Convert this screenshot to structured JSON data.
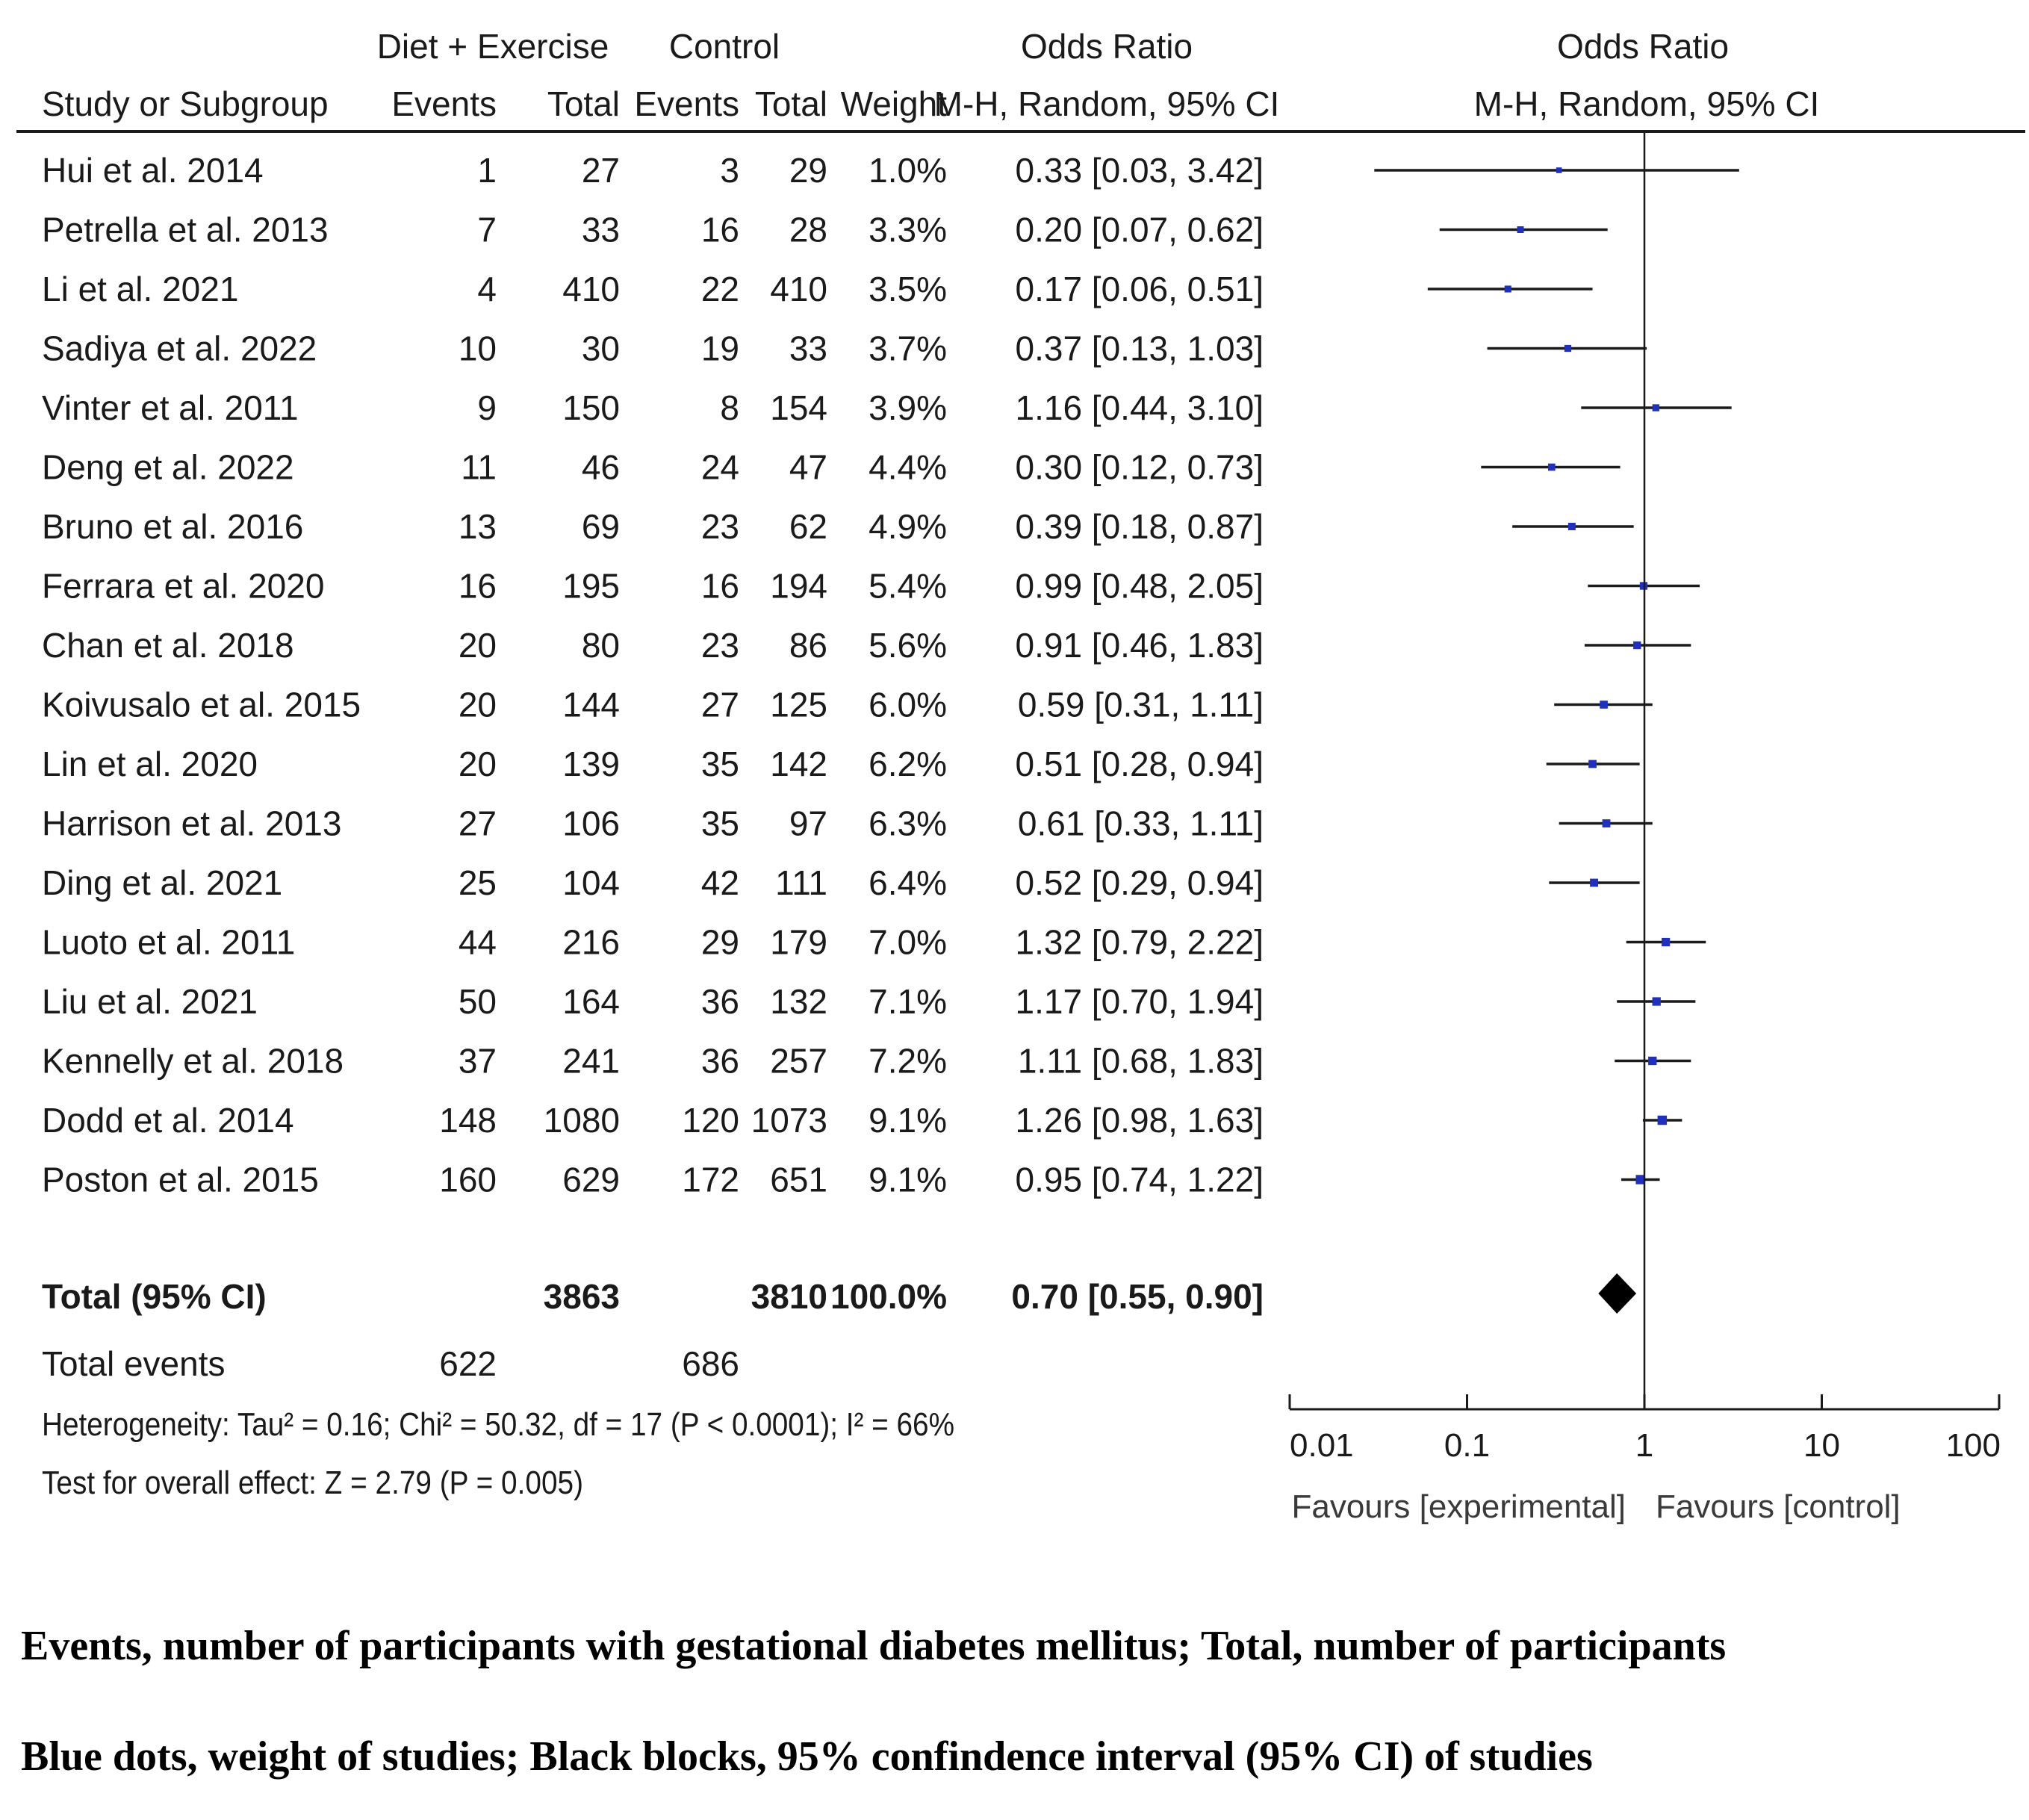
{
  "headers": {
    "group1": "Diet + Exercise",
    "group2": "Control",
    "or_label": "Odds Ratio",
    "or_method": "M-H, Random, 95% CI",
    "plot_label": "Odds Ratio",
    "plot_method": "M-H, Random, 95% CI",
    "study": "Study or Subgroup",
    "events": "Events",
    "total": "Total",
    "weight": "Weight"
  },
  "total_row": {
    "label": "Total (95% CI)",
    "total1": "3863",
    "total2": "3810",
    "weight": "100.0%",
    "ci": "0.70 [0.55, 0.90]"
  },
  "events_row": {
    "label": "Total events",
    "events1": "622",
    "events2": "686"
  },
  "heterogeneity": "Heterogeneity: Tau² = 0.16; Chi² = 50.32, df = 17 (P < 0.0001); I² = 66%",
  "overall_effect": "Test for overall effect: Z = 2.79 (P = 0.005)",
  "captions": {
    "line1": "Events, number of participants with gestational diabetes mellitus; Total, number of participants",
    "line2": "Blue dots, weight of studies; Black blocks, 95% confindence interval (95% CI) of studies"
  },
  "chart_data": {
    "type": "forest",
    "scale": "log",
    "xlim": [
      0.01,
      100
    ],
    "x_ticks": [
      0.01,
      0.1,
      1,
      10,
      100
    ],
    "x_tick_labels": [
      "0.01",
      "0.1",
      "1",
      "10",
      "100"
    ],
    "favours_left": "Favours [experimental]",
    "favours_right": "Favours [control]",
    "point_color": "#1f2fbf",
    "line_color": "#1a1a1a",
    "studies": [
      {
        "name": "Hui et al. 2014",
        "e1": 1,
        "n1": 27,
        "e2": 3,
        "n2": 29,
        "weight": "1.0%",
        "or": 0.33,
        "lo": 0.03,
        "hi": 3.42,
        "ci_text": "0.33 [0.03, 3.42]"
      },
      {
        "name": "Petrella et al. 2013",
        "e1": 7,
        "n1": 33,
        "e2": 16,
        "n2": 28,
        "weight": "3.3%",
        "or": 0.2,
        "lo": 0.07,
        "hi": 0.62,
        "ci_text": "0.20 [0.07, 0.62]"
      },
      {
        "name": "Li et al. 2021",
        "e1": 4,
        "n1": 410,
        "e2": 22,
        "n2": 410,
        "weight": "3.5%",
        "or": 0.17,
        "lo": 0.06,
        "hi": 0.51,
        "ci_text": "0.17 [0.06, 0.51]"
      },
      {
        "name": "Sadiya et al. 2022",
        "e1": 10,
        "n1": 30,
        "e2": 19,
        "n2": 33,
        "weight": "3.7%",
        "or": 0.37,
        "lo": 0.13,
        "hi": 1.03,
        "ci_text": "0.37 [0.13, 1.03]"
      },
      {
        "name": "Vinter et al. 2011",
        "e1": 9,
        "n1": 150,
        "e2": 8,
        "n2": 154,
        "weight": "3.9%",
        "or": 1.16,
        "lo": 0.44,
        "hi": 3.1,
        "ci_text": "1.16 [0.44, 3.10]"
      },
      {
        "name": "Deng et al. 2022",
        "e1": 11,
        "n1": 46,
        "e2": 24,
        "n2": 47,
        "weight": "4.4%",
        "or": 0.3,
        "lo": 0.12,
        "hi": 0.73,
        "ci_text": "0.30 [0.12, 0.73]"
      },
      {
        "name": "Bruno et al. 2016",
        "e1": 13,
        "n1": 69,
        "e2": 23,
        "n2": 62,
        "weight": "4.9%",
        "or": 0.39,
        "lo": 0.18,
        "hi": 0.87,
        "ci_text": "0.39 [0.18, 0.87]"
      },
      {
        "name": "Ferrara et al. 2020",
        "e1": 16,
        "n1": 195,
        "e2": 16,
        "n2": 194,
        "weight": "5.4%",
        "or": 0.99,
        "lo": 0.48,
        "hi": 2.05,
        "ci_text": "0.99 [0.48, 2.05]"
      },
      {
        "name": "Chan et al. 2018",
        "e1": 20,
        "n1": 80,
        "e2": 23,
        "n2": 86,
        "weight": "5.6%",
        "or": 0.91,
        "lo": 0.46,
        "hi": 1.83,
        "ci_text": "0.91 [0.46, 1.83]"
      },
      {
        "name": "Koivusalo et al. 2015",
        "e1": 20,
        "n1": 144,
        "e2": 27,
        "n2": 125,
        "weight": "6.0%",
        "or": 0.59,
        "lo": 0.31,
        "hi": 1.11,
        "ci_text": "0.59 [0.31, 1.11]"
      },
      {
        "name": "Lin et al. 2020",
        "e1": 20,
        "n1": 139,
        "e2": 35,
        "n2": 142,
        "weight": "6.2%",
        "or": 0.51,
        "lo": 0.28,
        "hi": 0.94,
        "ci_text": "0.51 [0.28, 0.94]"
      },
      {
        "name": "Harrison et al. 2013",
        "e1": 27,
        "n1": 106,
        "e2": 35,
        "n2": 97,
        "weight": "6.3%",
        "or": 0.61,
        "lo": 0.33,
        "hi": 1.11,
        "ci_text": "0.61 [0.33, 1.11]"
      },
      {
        "name": "Ding et al. 2021",
        "e1": 25,
        "n1": 104,
        "e2": 42,
        "n2": 111,
        "weight": "6.4%",
        "or": 0.52,
        "lo": 0.29,
        "hi": 0.94,
        "ci_text": "0.52 [0.29, 0.94]"
      },
      {
        "name": "Luoto et al. 2011",
        "e1": 44,
        "n1": 216,
        "e2": 29,
        "n2": 179,
        "weight": "7.0%",
        "or": 1.32,
        "lo": 0.79,
        "hi": 2.22,
        "ci_text": "1.32 [0.79, 2.22]"
      },
      {
        "name": "Liu et al. 2021",
        "e1": 50,
        "n1": 164,
        "e2": 36,
        "n2": 132,
        "weight": "7.1%",
        "or": 1.17,
        "lo": 0.7,
        "hi": 1.94,
        "ci_text": "1.17 [0.70, 1.94]"
      },
      {
        "name": "Kennelly et al. 2018",
        "e1": 37,
        "n1": 241,
        "e2": 36,
        "n2": 257,
        "weight": "7.2%",
        "or": 1.11,
        "lo": 0.68,
        "hi": 1.83,
        "ci_text": "1.11 [0.68, 1.83]"
      },
      {
        "name": "Dodd et al. 2014",
        "e1": 148,
        "n1": 1080,
        "e2": 120,
        "n2": 1073,
        "weight": "9.1%",
        "or": 1.26,
        "lo": 0.98,
        "hi": 1.63,
        "ci_text": "1.26 [0.98, 1.63]"
      },
      {
        "name": "Poston et al. 2015",
        "e1": 160,
        "n1": 629,
        "e2": 172,
        "n2": 651,
        "weight": "9.1%",
        "or": 0.95,
        "lo": 0.74,
        "hi": 1.22,
        "ci_text": "0.95 [0.74, 1.22]"
      }
    ],
    "pooled": {
      "or": 0.7,
      "lo": 0.55,
      "hi": 0.9
    }
  }
}
